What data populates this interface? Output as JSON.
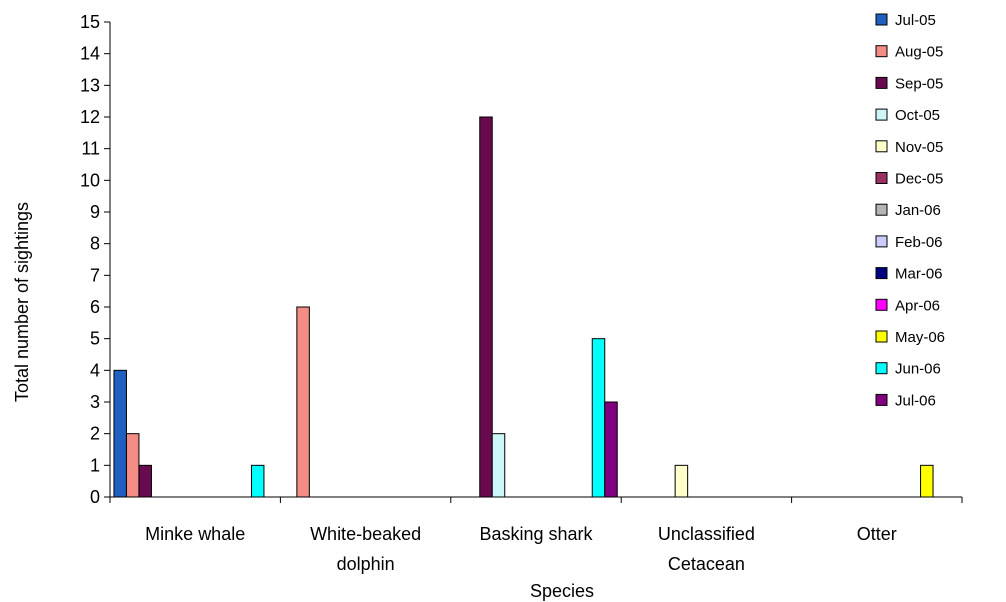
{
  "chart_data": {
    "type": "bar",
    "xlabel": "Species",
    "ylabel": "Total number of sightings",
    "ylim": [
      0,
      15
    ],
    "yticks": [
      0,
      1,
      2,
      3,
      4,
      5,
      6,
      7,
      8,
      9,
      10,
      11,
      12,
      13,
      14,
      15
    ],
    "grid": false,
    "legend_position": "right",
    "categories": [
      [
        "Minke whale"
      ],
      [
        "White-beaked",
        "dolphin"
      ],
      [
        "Basking shark"
      ],
      [
        "Unclassified",
        "Cetacean"
      ],
      [
        "Otter"
      ]
    ],
    "series": [
      {
        "name": "Jul-05",
        "color": "#1f5fbf",
        "values": [
          4,
          0,
          0,
          0,
          0
        ]
      },
      {
        "name": "Aug-05",
        "color": "#f28c84",
        "values": [
          2,
          6,
          0,
          0,
          0
        ]
      },
      {
        "name": "Sep-05",
        "color": "#6a0a4e",
        "values": [
          1,
          0,
          12,
          0,
          0
        ]
      },
      {
        "name": "Oct-05",
        "color": "#ccf6f8",
        "values": [
          0,
          0,
          2,
          0,
          0
        ]
      },
      {
        "name": "Nov-05",
        "color": "#ffffcc",
        "values": [
          0,
          0,
          0,
          1,
          0
        ]
      },
      {
        "name": "Dec-05",
        "color": "#9a3060",
        "values": [
          0,
          0,
          0,
          0,
          0
        ]
      },
      {
        "name": "Jan-06",
        "color": "#b4b4b4",
        "values": [
          0,
          0,
          0,
          0,
          0
        ]
      },
      {
        "name": "Feb-06",
        "color": "#ccccff",
        "values": [
          0,
          0,
          0,
          0,
          0
        ]
      },
      {
        "name": "Mar-06",
        "color": "#000080",
        "values": [
          0,
          0,
          0,
          0,
          0
        ]
      },
      {
        "name": "Apr-06",
        "color": "#ff00ff",
        "values": [
          0,
          0,
          0,
          0,
          0
        ]
      },
      {
        "name": "May-06",
        "color": "#ffff00",
        "values": [
          0,
          0,
          0,
          0,
          1
        ]
      },
      {
        "name": "Jun-06",
        "color": "#00ffff",
        "values": [
          1,
          0,
          5,
          0,
          0
        ]
      },
      {
        "name": "Jul-06",
        "color": "#800080",
        "values": [
          0,
          0,
          3,
          0,
          0
        ]
      }
    ]
  }
}
